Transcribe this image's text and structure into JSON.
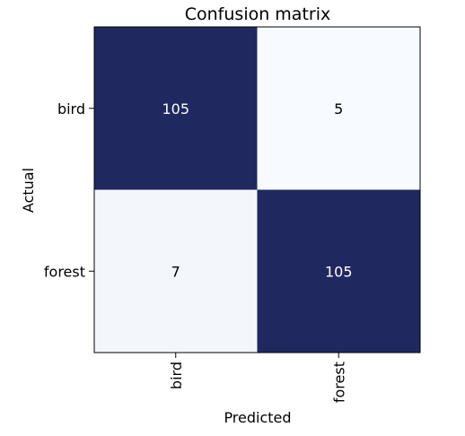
{
  "chart_data": {
    "type": "heatmap",
    "title": "Confusion matrix",
    "xlabel": "Predicted",
    "ylabel": "Actual",
    "x_categories": [
      "bird",
      "forest"
    ],
    "y_categories": [
      "bird",
      "forest"
    ],
    "matrix": [
      [
        105,
        5
      ],
      [
        7,
        105
      ]
    ],
    "value_range": [
      5,
      105
    ],
    "colors": {
      "low": "#f7fbff",
      "high": "#1f285f",
      "text_on_dark": "#ffffff",
      "text_on_light": "#000000",
      "border": "#000000"
    },
    "grid": false,
    "legend": "none"
  }
}
